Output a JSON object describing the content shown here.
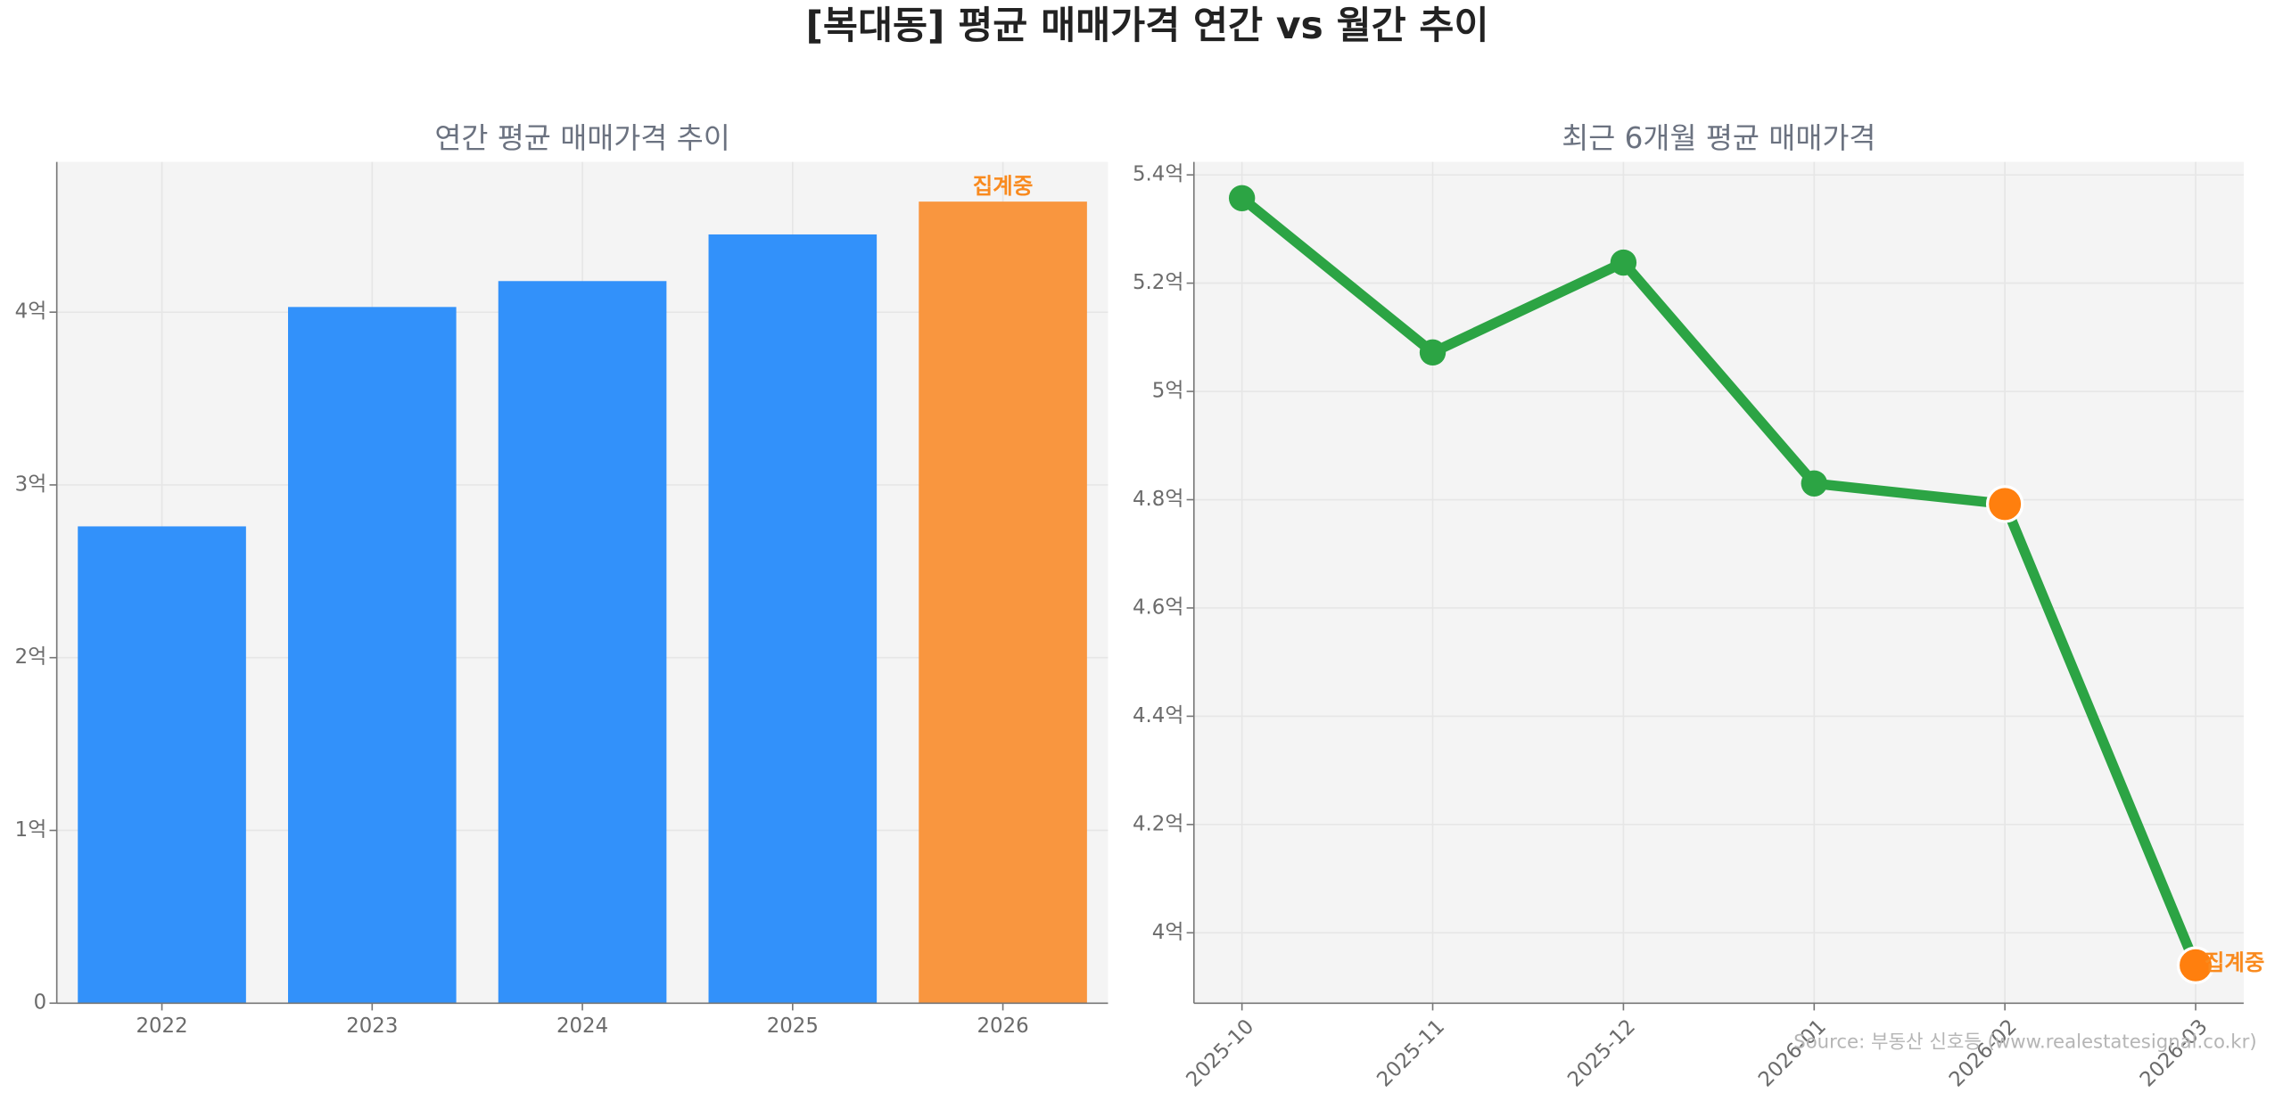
{
  "title": "[복대동] 평균 매매가격 연간 vs 월간 추이",
  "source": "Source: 부동산 신호등 (www.realestatesignal.co.kr)",
  "chart_data": [
    {
      "type": "bar",
      "title": "연간 평균 매매가격 추이",
      "categories": [
        "2022",
        "2023",
        "2024",
        "2025",
        "2026"
      ],
      "values": [
        2.76,
        4.03,
        4.18,
        4.45,
        4.64
      ],
      "colors": [
        "#3291fa",
        "#3291fa",
        "#3291fa",
        "#3291fa",
        "#f9963f"
      ],
      "annotation": "집계중",
      "annotation_color": "#f98a1e",
      "ylim": [
        0,
        4.87
      ],
      "yticks": [
        0,
        {
          "value": 1,
          "label": "1억"
        },
        {
          "value": 2,
          "label": "2억"
        },
        {
          "value": 3,
          "label": "3억"
        },
        {
          "value": 4,
          "label": "4억"
        }
      ],
      "grid": true
    },
    {
      "type": "line",
      "title": "최근 6개월 평균 매매가격",
      "categories": [
        "2025-10",
        "2025-11",
        "2025-12",
        "2026-01",
        "2026-02",
        "2026-03"
      ],
      "values": [
        5.357,
        5.072,
        5.238,
        4.83,
        4.792,
        3.94
      ],
      "color": "#2ca444",
      "marker_colors": [
        "#2ca444",
        "#2ca444",
        "#2ca444",
        "#2ca444",
        "#ff7f0e",
        "#ff7f0e"
      ],
      "annotation": "집계중",
      "annotation_color": "#f98a1e",
      "ylim": [
        3.87,
        5.424
      ],
      "yticks": [
        {
          "value": 4,
          "label": "4억"
        },
        {
          "value": 4.2,
          "label": "4.2억"
        },
        {
          "value": 4.4,
          "label": "4.4억"
        },
        {
          "value": 4.6,
          "label": "4.6억"
        },
        {
          "value": 4.8,
          "label": "4.8억"
        },
        {
          "value": 5,
          "label": "5억"
        },
        {
          "value": 5.2,
          "label": "5.2억"
        },
        {
          "value": 5.4,
          "label": "5.4억"
        }
      ],
      "grid": true
    }
  ]
}
